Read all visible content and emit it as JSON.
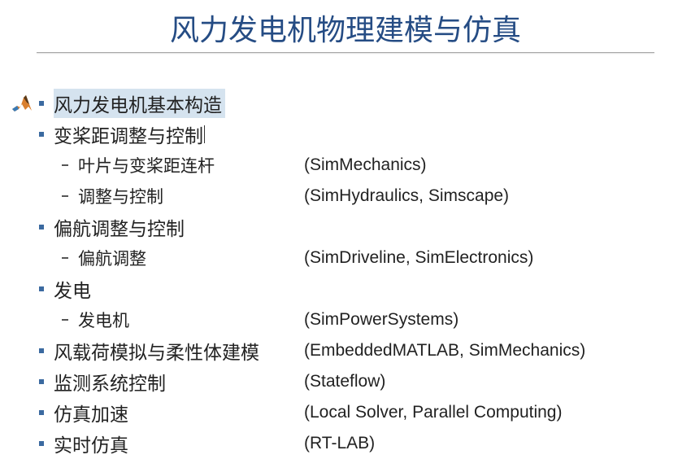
{
  "title": "风力发电机物理建模与仿真",
  "colors": {
    "title_color": "#254c84",
    "bullet_color": "#3b6aa0",
    "text_color": "#222222",
    "highlight_bg": "#d5e3ef",
    "background": "#ffffff"
  },
  "typography": {
    "title_fontsize": 36,
    "item_fontsize": 23,
    "subitem_fontsize": 21,
    "paren_fontsize": 21
  },
  "items": [
    {
      "label": "风力发电机基本构造",
      "highlighted": true,
      "paren": ""
    },
    {
      "label": "变桨距调整与控制",
      "paren": "",
      "cursor_after": true
    },
    {
      "sub": true,
      "label": "叶片与变桨距连杆",
      "paren": "(SimMechanics)"
    },
    {
      "sub": true,
      "label": "调整与控制",
      "paren": "(SimHydraulics, Simscape)"
    },
    {
      "label": "偏航调整与控制",
      "paren": ""
    },
    {
      "sub": true,
      "label": "偏航调整",
      "paren": "(SimDriveline, SimElectronics)"
    },
    {
      "label": "发电",
      "paren": ""
    },
    {
      "sub": true,
      "label": "发电机",
      "paren": "(SimPowerSystems)"
    },
    {
      "label": "风载荷模拟与柔性体建模",
      "paren": "(EmbeddedMATLAB, SimMechanics)"
    },
    {
      "label": "监测系统控制",
      "paren": "(Stateflow)"
    },
    {
      "label": "仿真加速",
      "paren": "(Local Solver, Parallel Computing)"
    },
    {
      "label": "实时仿真",
      "paren": "(RT-LAB)"
    }
  ]
}
